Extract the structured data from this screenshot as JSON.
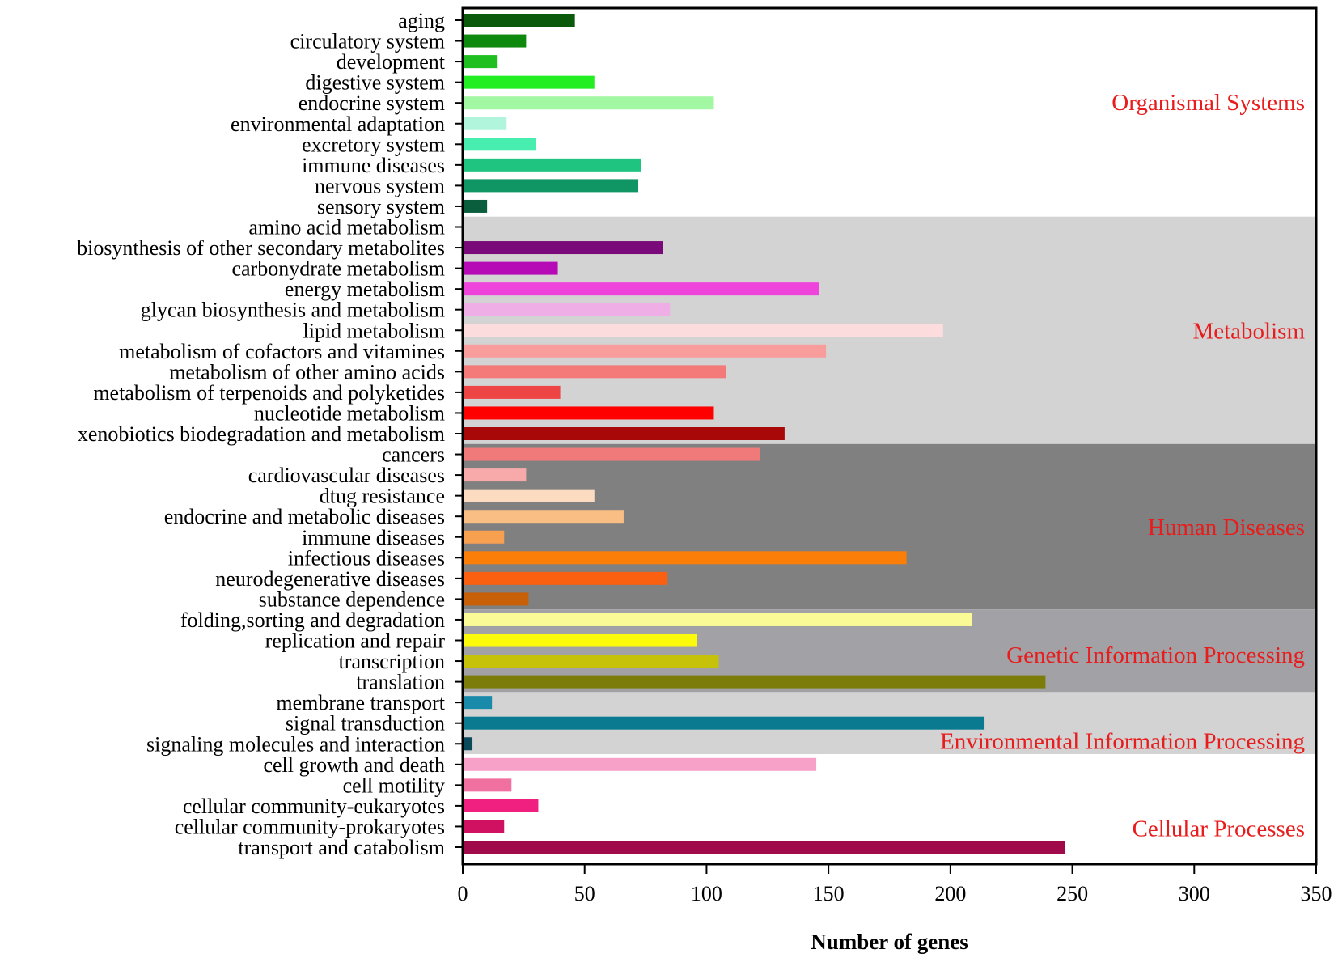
{
  "chart_data": {
    "type": "bar",
    "orientation": "horizontal",
    "title": "",
    "xlabel": "Number of genes",
    "ylabel": "",
    "xlim": [
      0,
      350
    ],
    "xticks": [
      0,
      50,
      100,
      150,
      200,
      250,
      300,
      350
    ],
    "grid": false,
    "categories": [
      "aging",
      "circulatory system",
      "development",
      "digestive system",
      "endocrine system",
      "environmental adaptation",
      "excretory system",
      "immune diseases",
      "nervous system",
      "sensory system",
      "amino acid metabolism",
      "biosynthesis of other secondary metabolites",
      "carbonydrate metabolism",
      "energy metabolism",
      "glycan biosynthesis and metabolism",
      "lipid metabolism",
      "metabolism of cofactors and vitamines",
      "metabolism of other amino acids",
      "metabolism of terpenoids and polyketides",
      "nucleotide metabolism",
      "xenobiotics biodegradation and metabolism",
      "cancers",
      "cardiovascular diseases",
      "dtug resistance",
      "endocrine and metabolic diseases",
      "immune diseases",
      "infectious diseases",
      "neurodegenerative diseases",
      "substance dependence",
      "folding,sorting and degradation",
      "replication and repair",
      "transcription",
      "translation",
      "membrane transport",
      "signal transduction",
      "signaling molecules and interaction",
      "cell growth and death",
      "cell motility",
      "cellular community-eukaryotes",
      "cellular community-prokaryotes",
      "transport and catabolism"
    ],
    "values": [
      46,
      26,
      14,
      54,
      103,
      18,
      30,
      73,
      72,
      10,
      0,
      82,
      39,
      146,
      85,
      197,
      149,
      108,
      40,
      103,
      132,
      122,
      26,
      54,
      66,
      17,
      182,
      84,
      27,
      209,
      96,
      105,
      239,
      12,
      214,
      4,
      145,
      20,
      31,
      17,
      247
    ],
    "bar_colors": [
      "#0b5a0b",
      "#0d8a0d",
      "#1fbf1f",
      "#22ee22",
      "#a2f7a2",
      "#b0f5dc",
      "#48eeb0",
      "#1ec480",
      "#0f9664",
      "#0a5e3e",
      "#ffffff",
      "#7a0a7a",
      "#b60ab6",
      "#ee44dc",
      "#f0aee6",
      "#fcdcdc",
      "#f89c9c",
      "#f47a7a",
      "#ee4444",
      "#ff0000",
      "#a80808",
      "#f07a7a",
      "#f8aaaa",
      "#fbdcc0",
      "#f8be84",
      "#f7a050",
      "#fa7e08",
      "#fa6010",
      "#c8600a",
      "#fafa96",
      "#fafa0a",
      "#c6c20a",
      "#7c7c0a",
      "#1a8aaa",
      "#0a7a90",
      "#0a4a5a",
      "#f7a0c8",
      "#f070a0",
      "#f02080",
      "#d01060",
      "#a00a4a"
    ],
    "groups": [
      {
        "name": "Organismal Systems",
        "start": 0,
        "end": 9,
        "band_color": "#ffffff",
        "label_color": "#e81c1c"
      },
      {
        "name": "Metabolism",
        "start": 10,
        "end": 20,
        "band_color": "#d3d3d3",
        "label_color": "#e81c1c"
      },
      {
        "name": "Human Diseases",
        "start": 21,
        "end": 28,
        "band_color": "#808080",
        "label_color": "#e81c1c"
      },
      {
        "name": "Genetic Information Processing",
        "start": 29,
        "end": 32,
        "band_color": "#a2a2a6",
        "label_color": "#e81c1c"
      },
      {
        "name": "Environmental Information Processing",
        "start": 33,
        "end": 35,
        "band_color": "#d3d3d3",
        "label_color": "#e81c1c"
      },
      {
        "name": "Cellular Processes",
        "start": 36,
        "end": 40,
        "band_color": "#ffffff",
        "label_color": "#e81c1c"
      }
    ]
  }
}
